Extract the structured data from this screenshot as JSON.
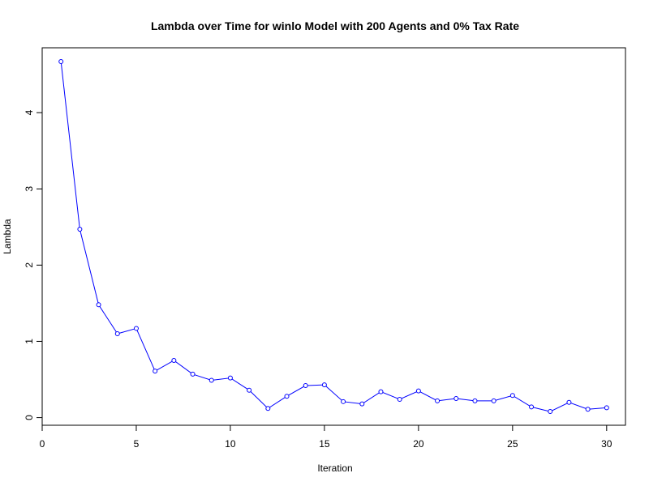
{
  "chart_data": {
    "type": "line",
    "title": "Lambda over Time for winlo Model with 200 Agents and 0% Tax Rate",
    "xlabel": "Iteration",
    "ylabel": "Lambda",
    "xlim": [
      0,
      31
    ],
    "ylim": [
      -0.1,
      4.85
    ],
    "x_ticks": [
      "0",
      "5",
      "10",
      "15",
      "20",
      "25",
      "30"
    ],
    "y_ticks": [
      "0",
      "1",
      "2",
      "3",
      "4"
    ],
    "grid": false,
    "series": [
      {
        "color": "#0000ff",
        "marker": "open-circle",
        "x": [
          1,
          2,
          3,
          4,
          5,
          6,
          7,
          8,
          9,
          10,
          11,
          12,
          13,
          14,
          15,
          16,
          17,
          18,
          19,
          20,
          21,
          22,
          23,
          24,
          25,
          26,
          27,
          28,
          29,
          30
        ],
        "values": [
          4.67,
          2.47,
          1.48,
          1.1,
          1.17,
          0.61,
          0.75,
          0.57,
          0.49,
          0.52,
          0.36,
          0.12,
          0.28,
          0.42,
          0.43,
          0.21,
          0.18,
          0.34,
          0.24,
          0.35,
          0.22,
          0.25,
          0.22,
          0.22,
          0.29,
          0.14,
          0.08,
          0.2,
          0.11,
          0.13
        ]
      }
    ]
  }
}
